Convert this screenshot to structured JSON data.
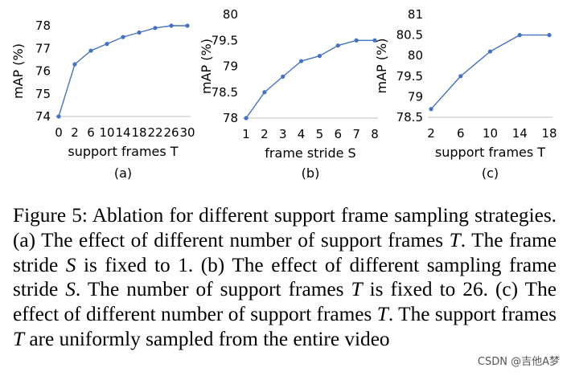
{
  "chart_data": [
    {
      "type": "line",
      "ylabel": "mAP (%)",
      "xlabel": "support frames T",
      "panel_label": "(a)",
      "categories": [
        "0",
        "2",
        "6",
        "10",
        "14",
        "18",
        "22",
        "26",
        "30"
      ],
      "values": [
        74.0,
        76.3,
        76.9,
        77.2,
        77.5,
        77.7,
        77.9,
        78.0,
        78.0
      ],
      "ylim": [
        74,
        78
      ],
      "yticks": [
        "74",
        "75",
        "76",
        "77",
        "78"
      ],
      "colors": {
        "line": "#4472C4"
      }
    },
    {
      "type": "line",
      "ylabel": "mAP (%)",
      "xlabel": "frame stride S",
      "panel_label": "(b)",
      "categories": [
        "1",
        "2",
        "3",
        "4",
        "5",
        "6",
        "7",
        "8"
      ],
      "values": [
        78.0,
        78.5,
        78.8,
        79.1,
        79.2,
        79.4,
        79.5,
        79.5
      ],
      "ylim": [
        78,
        80
      ],
      "yticks": [
        "78",
        "78.5",
        "79",
        "79.5",
        "80"
      ],
      "colors": {
        "line": "#4472C4"
      }
    },
    {
      "type": "line",
      "ylabel": "mAP (%)",
      "xlabel": "support frames T",
      "panel_label": "(c)",
      "categories": [
        "2",
        "6",
        "10",
        "14",
        "18"
      ],
      "values": [
        78.7,
        79.5,
        80.1,
        80.5,
        80.5
      ],
      "ylim": [
        78.5,
        81
      ],
      "yticks": [
        "78.5",
        "79",
        "79.5",
        "80",
        "80.5",
        "81"
      ],
      "colors": {
        "line": "#4472C4"
      }
    }
  ],
  "caption": {
    "s1": "Figure 5: Ablation for different support frame sampling strategies. (a) The effect of different number of support frames ",
    "v1": "T",
    "s2": ". The frame stride ",
    "v2": "S",
    "s3": " is fixed to 1. (b) The effect of different sampling frame stride ",
    "v3": "S",
    "s4": ". The number of support frames ",
    "v4": "T",
    "s5": " is fixed to 26. (c) The effect of different number of support frames ",
    "v5": "T",
    "s6": ". The support frames ",
    "v6": "T",
    "s7": " are uniformly sampled from the entire video"
  },
  "watermark": "CSDN @吉他A梦"
}
